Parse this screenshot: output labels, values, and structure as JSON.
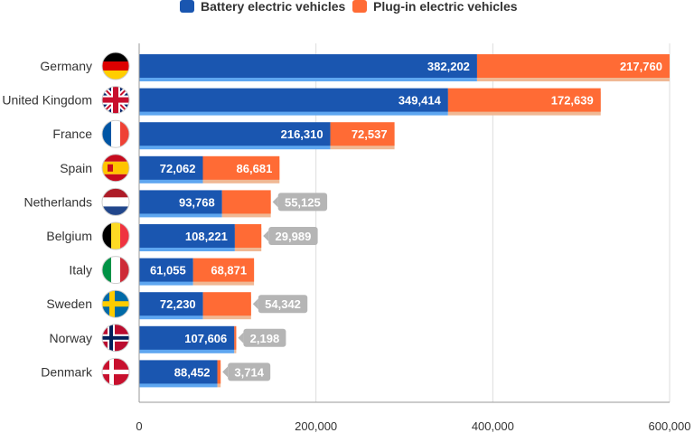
{
  "chart_data": {
    "type": "bar",
    "orientation": "horizontal",
    "stacked": true,
    "categories": [
      "Germany",
      "United Kingdom",
      "France",
      "Spain",
      "Netherlands",
      "Belgium",
      "Italy",
      "Sweden",
      "Norway",
      "Denmark"
    ],
    "series": [
      {
        "name": "Battery electric vehicles",
        "color": "#1a56b0",
        "values": [
          382202,
          349414,
          216310,
          72062,
          93768,
          108221,
          61055,
          72230,
          107606,
          88452
        ],
        "labels": [
          "382,202",
          "349,414",
          "216,310",
          "72,062",
          "93,768",
          "108,221",
          "61,055",
          "72,230",
          "107,606",
          "88,452"
        ]
      },
      {
        "name": "Plug-in electric vehicles",
        "color": "#ff6b35",
        "values": [
          217760,
          172639,
          72537,
          86681,
          55125,
          29989,
          68871,
          54342,
          2198,
          3714
        ],
        "labels": [
          "217,760",
          "172,639",
          "72,537",
          "86,681",
          "55,125",
          "29,989",
          "68,871",
          "54,342",
          "2,198",
          "3,714"
        ]
      }
    ],
    "xlim": [
      0,
      600000
    ],
    "xticks": [
      0,
      200000,
      400000,
      600000
    ],
    "xtick_labels": [
      "0",
      "200,000",
      "400,000",
      "600,000"
    ],
    "grid": "vertical",
    "legend_position": "top-center",
    "flags": [
      "flag-de-icon",
      "flag-gb-icon",
      "flag-fr-icon",
      "flag-es-icon",
      "flag-nl-icon",
      "flag-be-icon",
      "flag-it-icon",
      "flag-se-icon",
      "flag-no-icon",
      "flag-dk-icon"
    ],
    "label_box_color": "#b5b5b5",
    "axis_color": "#999999",
    "grid_color": "#dddddd"
  }
}
